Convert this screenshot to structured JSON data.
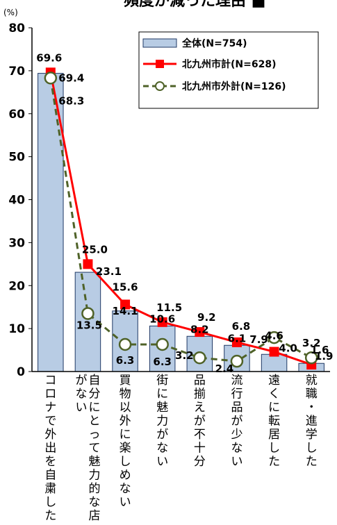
{
  "chart_data": {
    "type": "bar",
    "title": "頻度が減った理由 ■",
    "ylabel": "(%)",
    "ylim": [
      0,
      80
    ],
    "yticks": [
      0,
      10,
      20,
      30,
      40,
      50,
      60,
      70,
      80
    ],
    "grid": false,
    "legend_position": "top-right",
    "categories": [
      "コロナで外出を自粛した",
      "自分にとって魅力的な店がない",
      "買物以外に楽しめない",
      "街に魅力がない",
      "品揃えが不十分",
      "流行品が少ない",
      "遠くに転居した",
      "就職・進学した"
    ],
    "series": [
      {
        "name": "全体(N=754)",
        "kind": "bar",
        "color": "#b8cce4",
        "values": [
          69.4,
          23.1,
          14.1,
          10.6,
          8.2,
          6.1,
          4.0,
          1.9
        ]
      },
      {
        "name": "北九州市計(N=628)",
        "kind": "line",
        "color": "#ff0000",
        "values": [
          69.6,
          25.0,
          15.6,
          11.5,
          9.2,
          6.8,
          4.6,
          1.6
        ]
      },
      {
        "name": "北九州市外計(N=126)",
        "kind": "line-dashed",
        "color": "#4f6228",
        "values": [
          68.3,
          13.5,
          6.3,
          6.3,
          3.2,
          2.4,
          7.9,
          3.2
        ]
      }
    ]
  }
}
